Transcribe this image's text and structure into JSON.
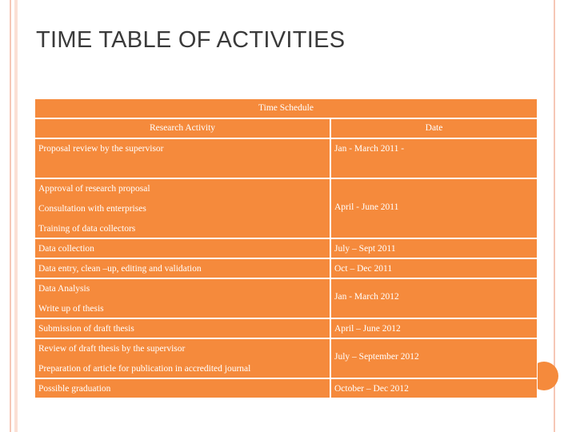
{
  "title": "TIME TABLE OF ACTIVITIES",
  "table": {
    "caption": "Time Schedule",
    "header": [
      "Research Activity",
      "Date"
    ],
    "rows": [
      {
        "activities": [
          "Proposal review by the supervisor"
        ],
        "date": "Jan  - March 2011 -"
      },
      {
        "activities": [
          "Approval of research proposal",
          "Consultation with enterprises",
          "Training of data collectors"
        ],
        "date": "April - June 2011"
      },
      {
        "activities": [
          "Data collection"
        ],
        "date": "July – Sept  2011"
      },
      {
        "activities": [
          "Data entry, clean –up, editing and validation"
        ],
        "date": "Oct – Dec 2011"
      },
      {
        "activities": [
          "Data Analysis",
          "Write up of thesis"
        ],
        "date": "Jan  - March 2012"
      },
      {
        "activities": [
          "Submission of draft thesis"
        ],
        "date": "April – June 2012"
      },
      {
        "activities": [
          "Review of draft thesis by the supervisor",
          "Preparation of article for publication in accredited journal"
        ],
        "date": "July – September 2012"
      },
      {
        "activities": [
          "Possible graduation"
        ],
        "date": "October – Dec 2012"
      }
    ]
  }
}
